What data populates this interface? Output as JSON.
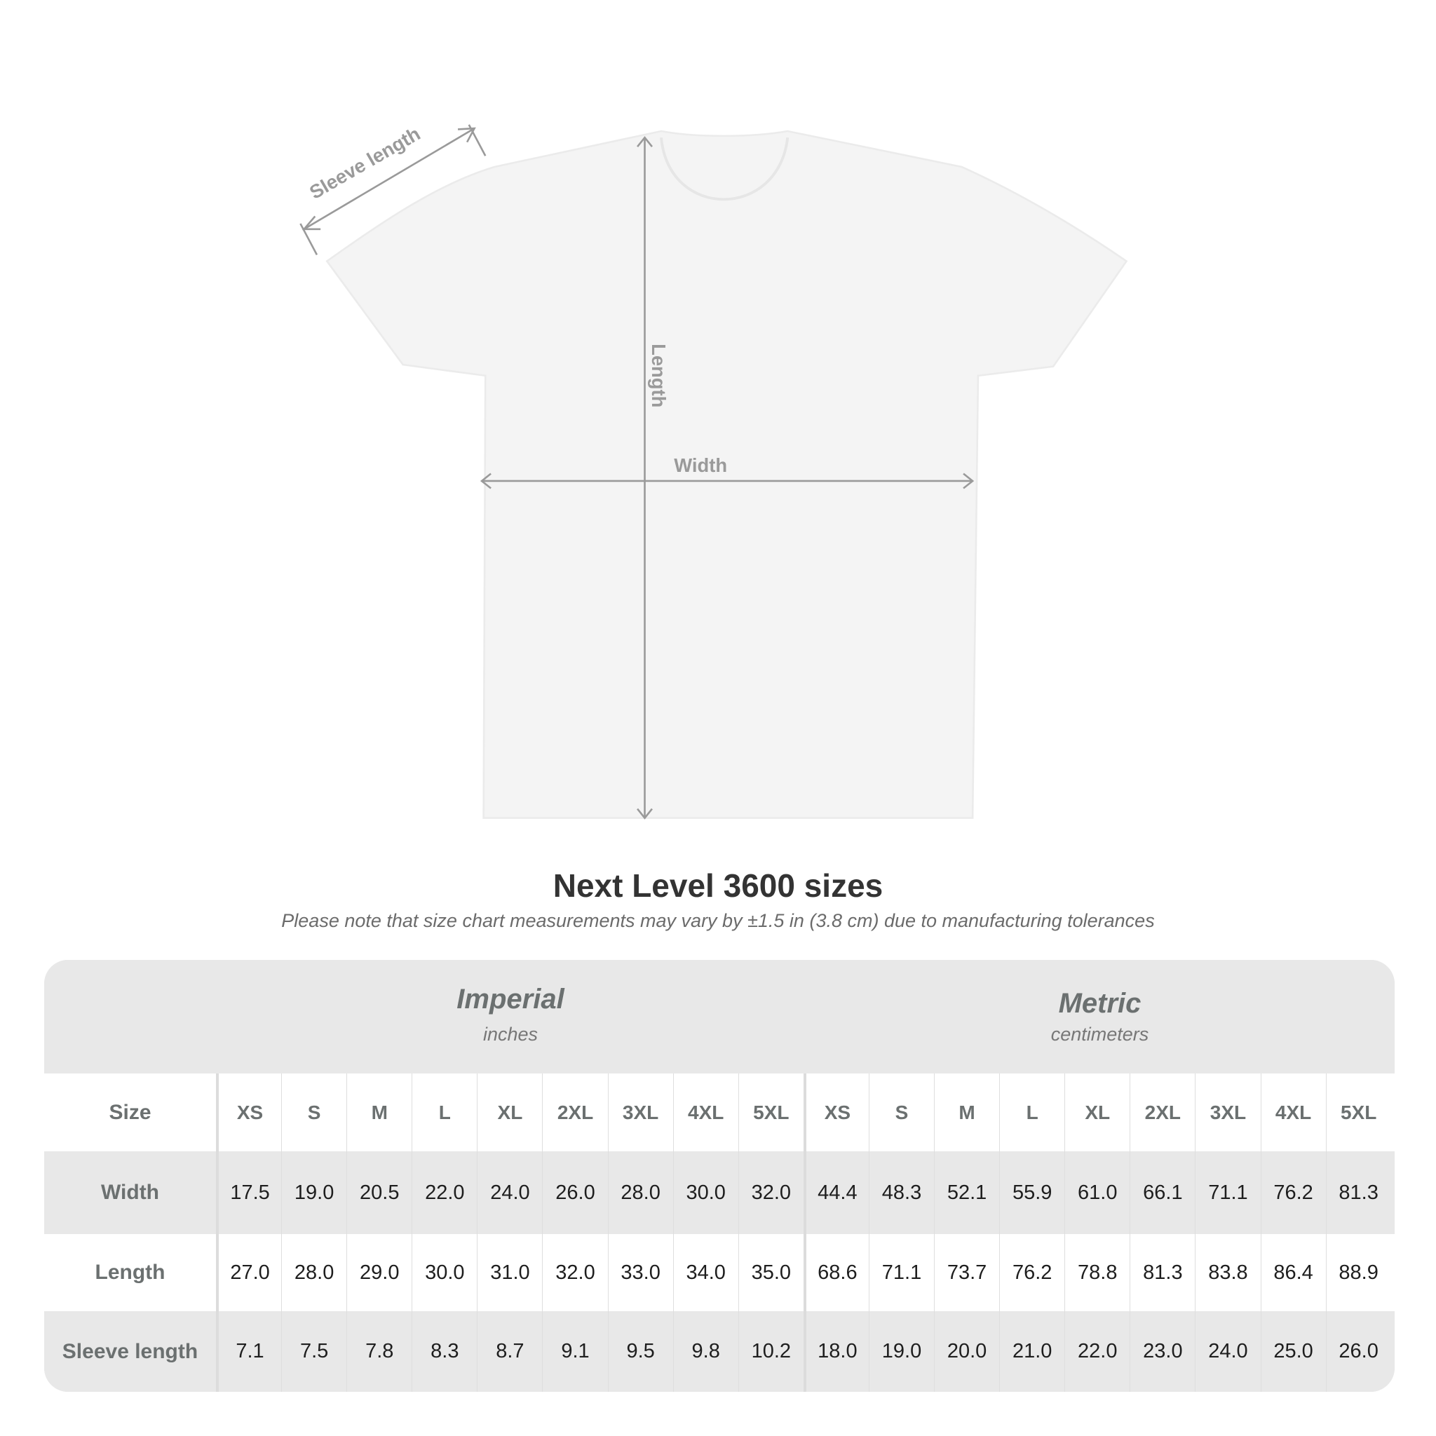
{
  "diagram": {
    "sleeve_label": "Sleeve length",
    "length_label": "Length",
    "width_label": "Width"
  },
  "title": "Next Level 3600 sizes",
  "subtitle": "Please note that size chart measurements may vary by ±1.5 in (3.8 cm) due to manufacturing tolerances",
  "table": {
    "imperial": {
      "name": "Imperial",
      "unit": "inches"
    },
    "metric": {
      "name": "Metric",
      "unit": "centimeters"
    },
    "size_label": "Size",
    "sizes": [
      "XS",
      "S",
      "M",
      "L",
      "XL",
      "2XL",
      "3XL",
      "4XL",
      "5XL"
    ],
    "rows": [
      {
        "label": "Width",
        "imperial": [
          "17.5",
          "19.0",
          "20.5",
          "22.0",
          "24.0",
          "26.0",
          "28.0",
          "30.0",
          "32.0"
        ],
        "metric": [
          "44.4",
          "48.3",
          "52.1",
          "55.9",
          "61.0",
          "66.1",
          "71.1",
          "76.2",
          "81.3"
        ]
      },
      {
        "label": "Length",
        "imperial": [
          "27.0",
          "28.0",
          "29.0",
          "30.0",
          "31.0",
          "32.0",
          "33.0",
          "34.0",
          "35.0"
        ],
        "metric": [
          "68.6",
          "71.1",
          "73.7",
          "76.2",
          "78.8",
          "81.3",
          "83.8",
          "86.4",
          "88.9"
        ]
      },
      {
        "label": "Sleeve length",
        "imperial": [
          "7.1",
          "7.5",
          "7.8",
          "8.3",
          "8.7",
          "9.1",
          "9.5",
          "9.8",
          "10.2"
        ],
        "metric": [
          "18.0",
          "19.0",
          "20.0",
          "21.0",
          "22.0",
          "23.0",
          "24.0",
          "25.0",
          "26.0"
        ]
      }
    ]
  },
  "colors": {
    "shirt": "#f4f4f4",
    "measure_lines": "#9a9a9a",
    "table_grey": "#e8e8e8",
    "label_text": "#6b7070"
  }
}
